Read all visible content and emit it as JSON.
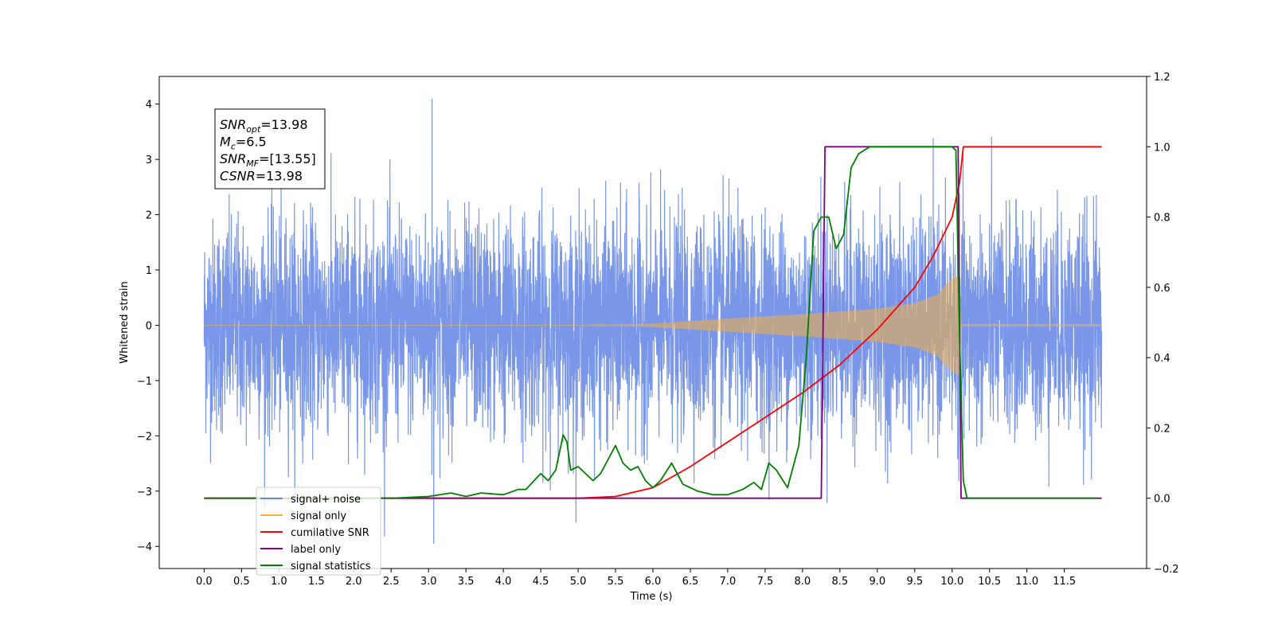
{
  "chart_data": {
    "type": "line",
    "xlabel": "Time (s)",
    "ylabel": "Whitened strain",
    "xlim": [
      -0.6,
      12.6
    ],
    "ylim": [
      -4.4,
      4.5
    ],
    "y2lim": [
      -0.2,
      1.2
    ],
    "x_ticks": [
      0.0,
      0.5,
      1.0,
      1.5,
      2.0,
      2.5,
      3.0,
      3.5,
      4.0,
      4.5,
      5.0,
      5.5,
      6.0,
      6.5,
      7.0,
      7.5,
      8.0,
      8.5,
      9.0,
      9.5,
      10.0,
      10.5,
      11.0,
      11.5
    ],
    "x_tick_labels": [
      "0.0",
      "0.5",
      "1.0",
      "1.5",
      "2.0",
      "2.5",
      "3.0",
      "3.5",
      "4.0",
      "4.5",
      "5.0",
      "5.5",
      "6.0",
      "6.5",
      "7.0",
      "7.5",
      "8.0",
      "8.5",
      "9.0",
      "9.5",
      "10.0",
      "10.5",
      "11.0",
      "11.5"
    ],
    "y_ticks": [
      -4,
      -3,
      -2,
      -1,
      0,
      1,
      2,
      3,
      4
    ],
    "y_tick_labels": [
      "−4",
      "−3",
      "−2",
      "−1",
      "0",
      "1",
      "2",
      "3",
      "4"
    ],
    "y2_ticks": [
      -0.2,
      0.0,
      0.2,
      0.4,
      0.6,
      0.8,
      1.0,
      1.2
    ],
    "y2_tick_labels": [
      "−0.2",
      "0.0",
      "0.2",
      "0.4",
      "0.6",
      "0.8",
      "1.0",
      "1.2"
    ],
    "grid": false,
    "legend_position": "lower-left",
    "annotation_box": {
      "lines": [
        {
          "main": "SNR",
          "sub": "opt",
          "rest": "=13.98"
        },
        {
          "main": "M",
          "sub": "c",
          "rest": "=6.5"
        },
        {
          "main": "SNR",
          "sub": "MF",
          "rest": "=[13.55]"
        },
        {
          "main": "CSNR",
          "sub": "",
          "rest": "=13.98"
        }
      ]
    },
    "series": [
      {
        "name": "signal+ noise",
        "color": "#6a8be6",
        "axis": "left",
        "style": "noise",
        "x_range": [
          0.0,
          12.0
        ],
        "approx_std": 0.95,
        "approx_extremes": [
          4.1,
          -3.95
        ]
      },
      {
        "name": "signal only",
        "color": "#f5b041",
        "axis": "left",
        "style": "chirp",
        "envelope_x": [
          0.0,
          5.0,
          6.0,
          7.0,
          8.0,
          9.0,
          9.5,
          9.8,
          10.0,
          10.1,
          10.12,
          12.0
        ],
        "envelope_y": [
          0.0,
          0.0,
          0.03,
          0.12,
          0.2,
          0.3,
          0.4,
          0.55,
          0.85,
          0.9,
          0.02,
          0.02
        ]
      },
      {
        "name": "cumilative SNR",
        "color": "#ff0000",
        "axis": "right",
        "x": [
          0.0,
          5.0,
          5.5,
          6.0,
          6.5,
          7.0,
          7.5,
          8.0,
          8.5,
          9.0,
          9.5,
          9.75,
          10.0,
          10.1,
          10.15,
          12.0
        ],
        "y": [
          0.0,
          0.0,
          0.005,
          0.03,
          0.09,
          0.16,
          0.23,
          0.3,
          0.38,
          0.48,
          0.6,
          0.69,
          0.8,
          0.9,
          1.0,
          1.0
        ]
      },
      {
        "name": "label only",
        "color": "#800080",
        "axis": "right",
        "x": [
          0.0,
          8.25,
          8.3,
          10.08,
          10.12,
          12.0
        ],
        "y": [
          0.0,
          0.0,
          1.0,
          1.0,
          0.0,
          0.0
        ]
      },
      {
        "name": "signal statistics",
        "color": "#008000",
        "axis": "right",
        "x": [
          0.0,
          2.5,
          3.0,
          3.3,
          3.5,
          3.7,
          4.0,
          4.2,
          4.3,
          4.5,
          4.6,
          4.7,
          4.8,
          4.85,
          4.9,
          5.0,
          5.2,
          5.3,
          5.4,
          5.5,
          5.6,
          5.7,
          5.8,
          5.9,
          6.0,
          6.1,
          6.25,
          6.4,
          6.6,
          6.8,
          7.0,
          7.2,
          7.35,
          7.45,
          7.55,
          7.65,
          7.8,
          7.95,
          8.05,
          8.15,
          8.25,
          8.35,
          8.45,
          8.55,
          8.65,
          8.75,
          8.9,
          9.1,
          9.5,
          10.0,
          10.05,
          10.1,
          10.15,
          10.2,
          11.5,
          11.95
        ],
        "y": [
          0.0,
          0.0,
          0.005,
          0.015,
          0.005,
          0.015,
          0.01,
          0.025,
          0.025,
          0.07,
          0.05,
          0.08,
          0.18,
          0.16,
          0.08,
          0.09,
          0.05,
          0.07,
          0.11,
          0.15,
          0.1,
          0.08,
          0.09,
          0.05,
          0.03,
          0.05,
          0.1,
          0.04,
          0.02,
          0.01,
          0.01,
          0.025,
          0.045,
          0.025,
          0.1,
          0.08,
          0.03,
          0.15,
          0.4,
          0.76,
          0.8,
          0.8,
          0.71,
          0.75,
          0.94,
          0.98,
          1.0,
          1.0,
          1.0,
          1.0,
          0.99,
          0.45,
          0.05,
          0.0,
          0.0,
          0.0
        ]
      }
    ]
  }
}
